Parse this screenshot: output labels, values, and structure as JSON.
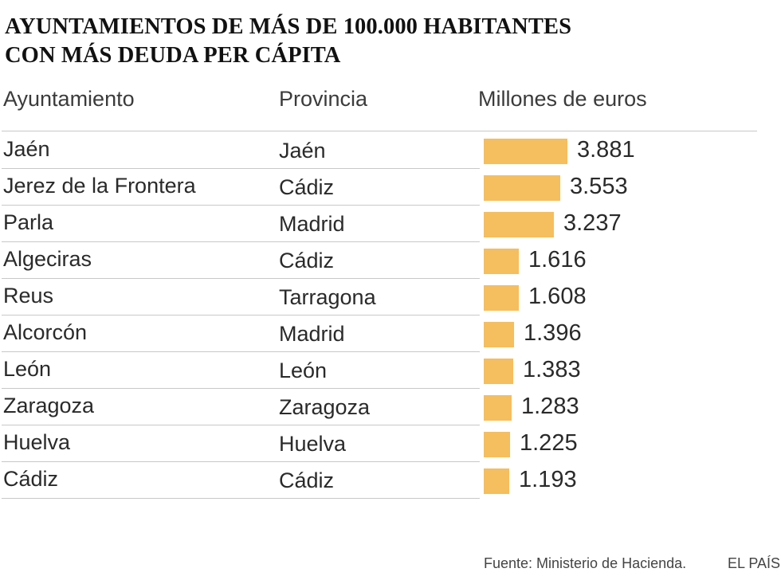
{
  "title": {
    "line1": "AYUNTAMIENTOS DE MÁS DE 100.000 HABITANTES",
    "line2": "CON MÁS DEUDA PER CÁPITA"
  },
  "headers": {
    "city": "Ayuntamiento",
    "province": "Provincia",
    "value": "Millones de euros"
  },
  "chart_data": {
    "type": "bar",
    "orientation": "horizontal",
    "title": "AYUNTAMIENTOS DE MÁS DE 100.000 HABITANTES CON MÁS DEUDA PER CÁPITA",
    "xlabel": "Millones de euros",
    "categories": [
      "Jaén",
      "Jerez de la Frontera",
      "Parla",
      "Algeciras",
      "Reus",
      "Alcorcón",
      "León",
      "Zaragoza",
      "Huelva",
      "Cádiz"
    ],
    "provinces": [
      "Jaén",
      "Cádiz",
      "Madrid",
      "Cádiz",
      "Tarragona",
      "Madrid",
      "León",
      "Zaragoza",
      "Huelva",
      "Cádiz"
    ],
    "values": [
      3881,
      3553,
      3237,
      1616,
      1608,
      1396,
      1383,
      1283,
      1225,
      1193
    ],
    "value_labels": [
      "3.881",
      "3.553",
      "3.237",
      "1.616",
      "1.608",
      "1.396",
      "1.383",
      "1.283",
      "1.225",
      "1.193"
    ],
    "bar_color": "#f5be5e"
  },
  "footer": {
    "source": "Fuente: Ministerio de Hacienda.",
    "brand": "EL PAÍS"
  }
}
